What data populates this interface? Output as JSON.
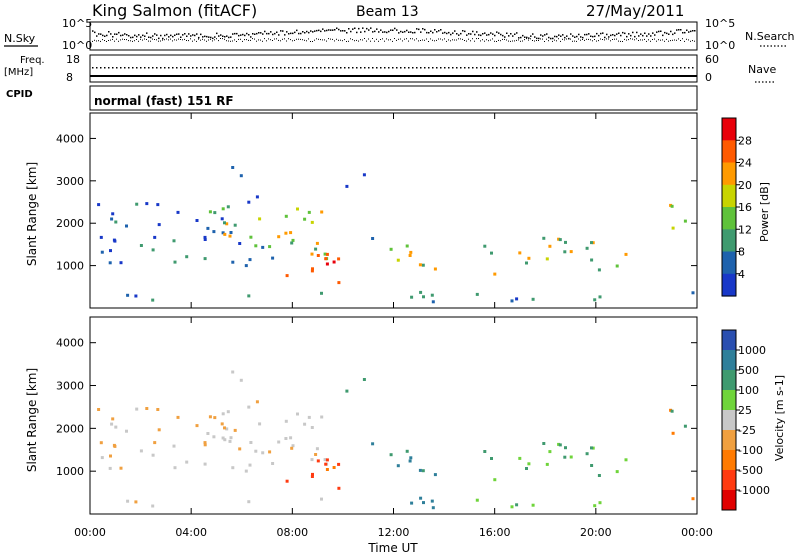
{
  "header": {
    "station": "King Salmon (fitACF)",
    "beam": "Beam 13",
    "date": "27/May/2011"
  },
  "status_panels": {
    "nsky_label": "N.Sky",
    "nsearch_label": "N.Search",
    "nsky_ticks": [
      "10^5",
      "10^0"
    ],
    "nsearch_ticks": [
      "10^5",
      "10^0"
    ],
    "freq_label_line1": "Freq.",
    "freq_label_line2": "[MHz]",
    "freq_ticks": [
      "18",
      "8"
    ],
    "nave_label": "Nave",
    "nave_ticks": [
      "60",
      "0"
    ],
    "cpid_label": "CPID",
    "cpid_text": "normal (fast) 151 RF"
  },
  "chart_data": [
    {
      "type": "heatmap",
      "name": "power",
      "ylabel": "Slant Range [km]",
      "y_ticks": [
        "4000",
        "3000",
        "2000",
        "1000"
      ],
      "x_ticks": [
        "00:00",
        "04:00",
        "08:00",
        "12:00",
        "16:00",
        "20:00",
        "00:00"
      ],
      "xlabel": "Time UT",
      "colorbar_label": "Power [dB]",
      "colorbar_ticks": [
        "28",
        "24",
        "20",
        "16",
        "12",
        "8",
        "4"
      ],
      "colorbar_colors": [
        "#e8000a",
        "#ff5a00",
        "#ff9a00",
        "#c8d400",
        "#5fc23a",
        "#3f9a6f",
        "#1e62ad",
        "#1838c8"
      ],
      "ylim": [
        0,
        4600
      ],
      "xlim_hours": [
        0,
        24
      ]
    },
    {
      "type": "heatmap",
      "name": "velocity",
      "ylabel": "Slant Range [km]",
      "y_ticks": [
        "4000",
        "3000",
        "2000",
        "1000"
      ],
      "x_ticks": [
        "00:00",
        "04:00",
        "08:00",
        "12:00",
        "16:00",
        "20:00",
        "00:00"
      ],
      "xlabel": "Time UT",
      "colorbar_label": "Velocity [m s-1]",
      "colorbar_ticks": [
        "1000",
        "500",
        "100",
        "25",
        "-25",
        "-100",
        "-500",
        "-1000"
      ],
      "colorbar_colors": [
        "#2a4fb0",
        "#2f7f9a",
        "#3f9a6f",
        "#6fd43a",
        "#c8c8c8",
        "#f0a040",
        "#ff7a00",
        "#ff3a10",
        "#e00000"
      ],
      "ylim": [
        0,
        4600
      ],
      "xlim_hours": [
        0,
        24
      ]
    }
  ]
}
